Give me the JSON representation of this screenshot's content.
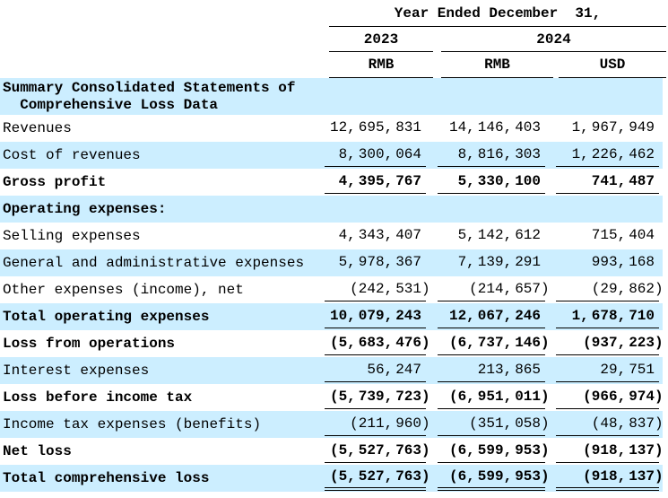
{
  "header": {
    "span_title": "Year Ended December  31,",
    "year_2023": "2023",
    "year_2024": "2024",
    "currency_col1": "RMB",
    "currency_col2": "RMB",
    "currency_col3": "USD"
  },
  "section_title": {
    "line1": "Summary Consolidated Statements of",
    "line2": "Comprehensive Loss Data"
  },
  "rows": [
    {
      "label": "Revenues",
      "rmb_2023": "12,695,831",
      "rmb_2024": "14,146,403",
      "usd_2024": "1,967,949"
    },
    {
      "label": "Cost of revenues",
      "rmb_2023": "8,300,064",
      "rmb_2024": "8,816,303",
      "usd_2024": "1,226,462"
    },
    {
      "label": "Gross profit",
      "rmb_2023": "4,395,767",
      "rmb_2024": "5,330,100",
      "usd_2024": "741,487"
    },
    {
      "label": "Operating expenses:"
    },
    {
      "label": "Selling expenses",
      "rmb_2023": "4,343,407",
      "rmb_2024": "5,142,612",
      "usd_2024": "715,404"
    },
    {
      "label": "General and administrative expenses",
      "rmb_2023": "5,978,367",
      "rmb_2024": "7,139,291",
      "usd_2024": "993,168"
    },
    {
      "label": "Other expenses (income), net",
      "rmb_2023": "(242,531)",
      "rmb_2024": "(214,657)",
      "usd_2024": "(29,862)"
    },
    {
      "label": "Total operating expenses",
      "rmb_2023": "10,079,243",
      "rmb_2024": "12,067,246",
      "usd_2024": "1,678,710"
    },
    {
      "label": "Loss from operations",
      "rmb_2023": "(5,683,476)",
      "rmb_2024": "(6,737,146)",
      "usd_2024": "(937,223)"
    },
    {
      "label": "Interest expenses",
      "rmb_2023": "56,247",
      "rmb_2024": "213,865",
      "usd_2024": "29,751"
    },
    {
      "label": "Loss before income tax",
      "rmb_2023": "(5,739,723)",
      "rmb_2024": "(6,951,011)",
      "usd_2024": "(966,974)"
    },
    {
      "label": "Income tax expenses (benefits)",
      "rmb_2023": "(211,960)",
      "rmb_2024": "(351,058)",
      "usd_2024": "(48,837)"
    },
    {
      "label": "Net loss",
      "rmb_2023": "(5,527,763)",
      "rmb_2024": "(6,599,953)",
      "usd_2024": "(918,137)"
    },
    {
      "label": "Total comprehensive loss",
      "rmb_2023": "(5,527,763)",
      "rmb_2024": "(6,599,953)",
      "usd_2024": "(918,137)"
    }
  ],
  "colors": {
    "stripe": "#cceeff",
    "text": "#000000",
    "rule": "#000000"
  }
}
